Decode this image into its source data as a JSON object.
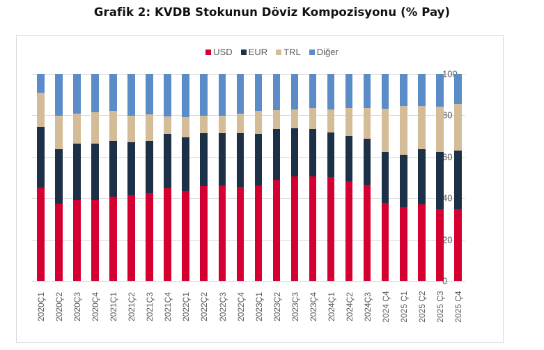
{
  "title": "Grafik 2: KVDB Stokunun Döviz Kompozisyonu (% Pay)",
  "legend": [
    {
      "label": "USD",
      "color": "#d50032"
    },
    {
      "label": "EUR",
      "color": "#1c3048"
    },
    {
      "label": "TRL",
      "color": "#d4bc98"
    },
    {
      "label": "Diğer",
      "color": "#5b8cc8"
    }
  ],
  "y_axis": {
    "ticks": [
      "0",
      "20",
      "40",
      "60",
      "80",
      "100"
    ]
  },
  "chart_data": {
    "type": "bar",
    "stacked": true,
    "title": "Grafik 2: KVDB Stokunun Döviz Kompozisyonu (% Pay)",
    "xlabel": "",
    "ylabel": "",
    "ylim": [
      0,
      100
    ],
    "yticks": [
      0,
      20,
      40,
      60,
      80,
      100
    ],
    "y_axis_position": "right",
    "grid": true,
    "legend_position": "top",
    "categories": [
      "2020Ç1",
      "2020Ç2",
      "2020Ç3",
      "2020Ç4",
      "2021Ç1",
      "2021Ç2",
      "2021Ç3",
      "2021Ç4",
      "2022Ç1",
      "2022Ç2",
      "2022Ç3",
      "2022Ç4",
      "2023Ç1",
      "2023Ç2",
      "2023Ç3",
      "2023Ç4",
      "2024Ç1",
      "2024Ç2",
      "2024Ç3",
      "2024 Ç4",
      "2025 Ç1",
      "2025 Ç2",
      "2025 Ç3",
      "2025 Ç4"
    ],
    "series": [
      {
        "name": "USD",
        "color": "#d50032",
        "values": [
          45.1,
          37.4,
          39.2,
          39.2,
          40.8,
          41.5,
          42.3,
          44.8,
          43.3,
          45.9,
          46.2,
          45.6,
          46.2,
          48.9,
          50.6,
          50.6,
          50.3,
          48.2,
          46.6,
          37.7,
          35.8,
          37.0,
          34.8,
          34.8
        ]
      },
      {
        "name": "EUR",
        "color": "#1c3048",
        "values": [
          29.4,
          26.2,
          27.1,
          27.1,
          26.8,
          25.6,
          25.5,
          26.1,
          26.2,
          25.5,
          25.1,
          25.7,
          24.7,
          24.5,
          23.1,
          22.8,
          21.5,
          21.8,
          22.1,
          24.5,
          25.3,
          26.8,
          27.4,
          28.1
        ]
      },
      {
        "name": "TRL",
        "color": "#d4bc98",
        "values": [
          16.3,
          16.3,
          14.6,
          15.3,
          14.4,
          12.8,
          12.6,
          8.6,
          9.7,
          8.5,
          8.6,
          9.6,
          11.3,
          9.1,
          9.1,
          10.1,
          11.0,
          13.5,
          14.8,
          21.0,
          23.4,
          20.7,
          22.0,
          22.5
        ]
      },
      {
        "name": "Diğer",
        "color": "#5b8cc8",
        "values": [
          9.2,
          20.1,
          19.1,
          18.4,
          18.0,
          20.1,
          19.6,
          20.5,
          20.8,
          20.1,
          20.1,
          19.1,
          17.8,
          17.5,
          17.2,
          16.5,
          17.2,
          16.5,
          16.5,
          16.8,
          15.5,
          15.5,
          15.8,
          14.6
        ]
      }
    ]
  }
}
